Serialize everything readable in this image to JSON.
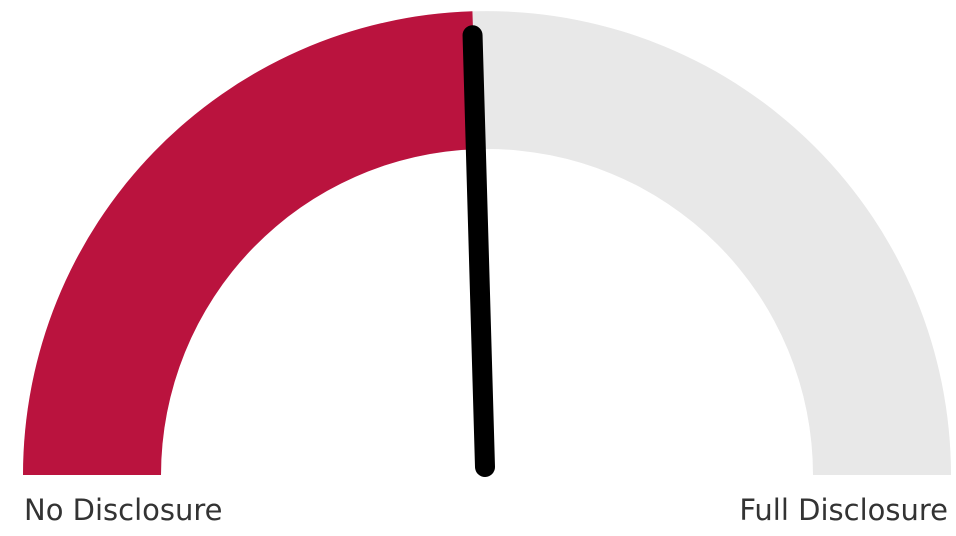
{
  "chart_data": {
    "type": "gauge",
    "min_label": "No Disclosure",
    "max_label": "Full Disclosure",
    "value": 0.49,
    "range": [
      0,
      1
    ],
    "needle_position": 0.49
  },
  "colors": {
    "fill": "#ba133e",
    "track": "#e8e8e8",
    "needle": "#000000"
  }
}
